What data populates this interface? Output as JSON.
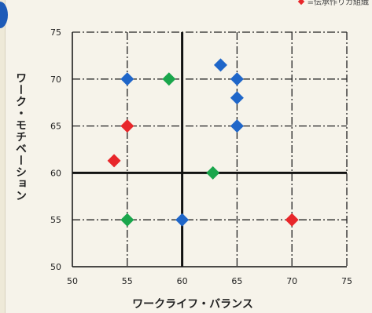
{
  "legend": {
    "left_text": "",
    "right_text": "=伝承作りカ組織"
  },
  "chart_data": {
    "type": "scatter",
    "xlabel": "ワークライフ・バランス",
    "ylabel": "ワーク・モチベーション",
    "xlim": [
      50,
      75
    ],
    "ylim": [
      50,
      75
    ],
    "x_ticks": [
      "50",
      "55",
      "60",
      "65",
      "70",
      "75"
    ],
    "y_ticks": [
      "50",
      "55",
      "60",
      "65",
      "70",
      "75"
    ],
    "crosshair": {
      "x": 60,
      "y": 60
    },
    "grid": "dash-dot",
    "colors": {
      "blue": "#1f66c9",
      "green": "#1aa64c",
      "red": "#e8262a",
      "axis": "#111111",
      "grid": "#222222"
    },
    "points": [
      {
        "x": 55.0,
        "y": 70.0,
        "color": "blue"
      },
      {
        "x": 58.8,
        "y": 70.0,
        "color": "green"
      },
      {
        "x": 63.5,
        "y": 71.5,
        "color": "blue"
      },
      {
        "x": 65.0,
        "y": 70.0,
        "color": "blue"
      },
      {
        "x": 65.0,
        "y": 68.0,
        "color": "blue"
      },
      {
        "x": 55.0,
        "y": 65.0,
        "color": "red"
      },
      {
        "x": 65.0,
        "y": 65.0,
        "color": "blue"
      },
      {
        "x": 53.8,
        "y": 61.3,
        "color": "red"
      },
      {
        "x": 62.8,
        "y": 60.0,
        "color": "green"
      },
      {
        "x": 55.0,
        "y": 55.0,
        "color": "green"
      },
      {
        "x": 60.0,
        "y": 55.0,
        "color": "blue"
      },
      {
        "x": 70.0,
        "y": 55.0,
        "color": "red"
      }
    ]
  }
}
